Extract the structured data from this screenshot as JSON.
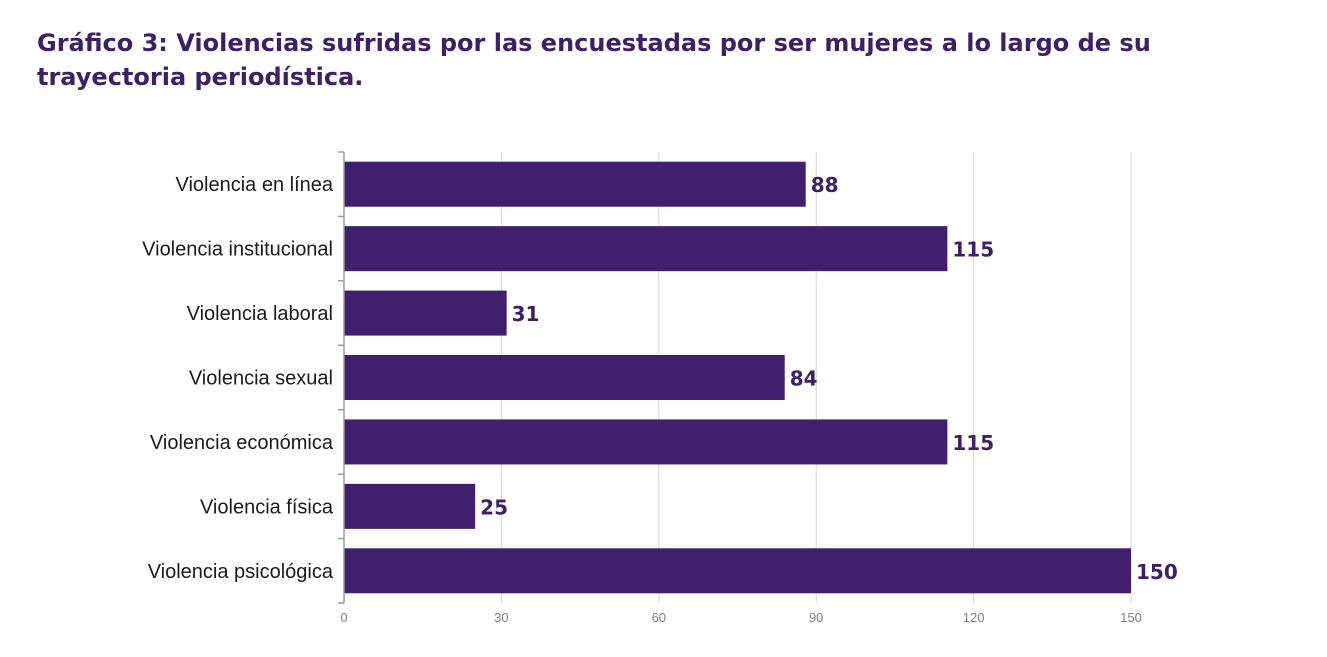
{
  "title": "Gráfico 3: Violencias sufridas por las encuestadas por ser mujeres a lo largo de su trayectoria periodística.",
  "chart_data": {
    "type": "bar",
    "orientation": "horizontal",
    "title": "Gráfico 3: Violencias sufridas por las encuestadas por ser mujeres a lo largo de su trayectoria periodística.",
    "categories": [
      "Violencia en línea",
      "Violencia institucional",
      "Violencia laboral",
      "Violencia sexual",
      "Violencia económica",
      "Violencia física",
      "Violencia psicológica"
    ],
    "values": [
      88,
      115,
      31,
      84,
      115,
      25,
      150
    ],
    "xlim": [
      0,
      150
    ],
    "xticks": [
      0,
      30,
      60,
      90,
      120,
      150
    ],
    "grid": true,
    "legend": "none",
    "bar_color": "#3f1f6e",
    "label_color": "#3c1f67"
  }
}
